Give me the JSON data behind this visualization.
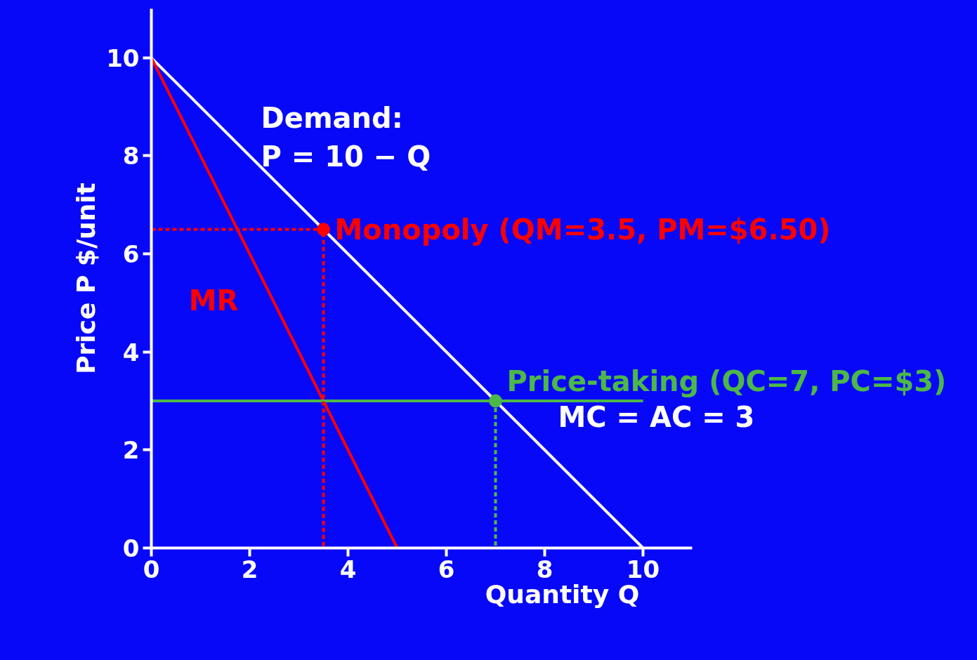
{
  "chart_data": {
    "type": "line",
    "xlabel": "Quantity Q",
    "ylabel": "Price P $/unit",
    "xlim": [
      0,
      11
    ],
    "ylim": [
      0,
      11
    ],
    "xticks": [
      0,
      2,
      4,
      6,
      8,
      10
    ],
    "yticks": [
      0,
      2,
      4,
      6,
      8,
      10
    ],
    "grid": false,
    "series": [
      {
        "name": "Demand:\nP = 10 − Q",
        "color": "#ffffff",
        "x": [
          0,
          10
        ],
        "values": [
          10,
          0
        ],
        "line_style": "solid",
        "marker": "none"
      },
      {
        "name": "MR",
        "color": "#ff0000",
        "x": [
          0,
          5
        ],
        "values": [
          10,
          0
        ],
        "line_style": "solid",
        "marker": "none"
      },
      {
        "color": "#4cb848",
        "x": [
          0,
          10
        ],
        "values": [
          3,
          3
        ],
        "line_style": "solid",
        "marker": "none"
      },
      {
        "color": "#ff0000",
        "x": [
          0,
          3.5,
          3.5
        ],
        "values": [
          6.5,
          6.5,
          0
        ],
        "line_style": "dashed",
        "marker": "none"
      },
      {
        "color": "#4cb848",
        "x": [
          7,
          7
        ],
        "values": [
          3,
          0
        ],
        "line_style": "dashed",
        "marker": "none"
      },
      {
        "type": "scatter",
        "name": "Monopoly (QM=3.5, PM=$6.50)",
        "color": "#ff0000",
        "x": [
          3.5
        ],
        "values": [
          6.5
        ],
        "marker": "circle"
      },
      {
        "type": "scatter",
        "name": "Price-taking (QC=7, PC=$3)",
        "color": "#4cb848",
        "x": [
          7
        ],
        "values": [
          3
        ],
        "marker": "circle"
      }
    ],
    "annotations": [
      "MC = AC = 3"
    ]
  }
}
